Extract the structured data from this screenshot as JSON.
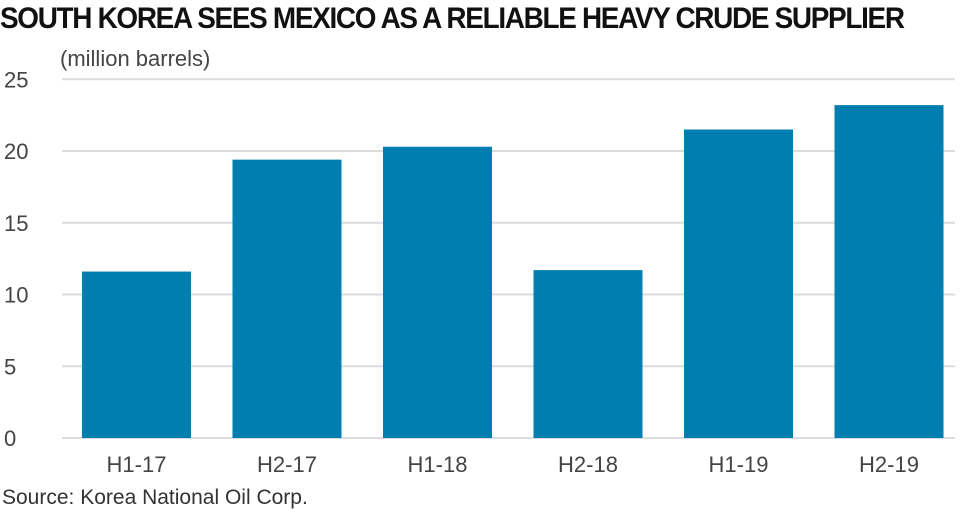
{
  "title": "SOUTH KOREA SEES MEXICO AS A RELIABLE HEAVY CRUDE SUPPLIER",
  "source": "Source: Korea National Oil Corp.",
  "chart_data": {
    "type": "bar",
    "title": "SOUTH KOREA SEES MEXICO AS A RELIABLE HEAVY CRUDE SUPPLIER",
    "ylabel": "(million barrels)",
    "xlabel": "",
    "categories": [
      "H1-17",
      "H2-17",
      "H1-18",
      "H2-18",
      "H1-19",
      "H2-19"
    ],
    "values": [
      11.6,
      19.4,
      20.3,
      11.7,
      21.5,
      23.2
    ],
    "ylim": [
      0,
      25
    ],
    "yticks": [
      "0",
      "5",
      "10",
      "15",
      "20",
      "25"
    ],
    "grid": true,
    "bar_color": "#007eaf"
  }
}
